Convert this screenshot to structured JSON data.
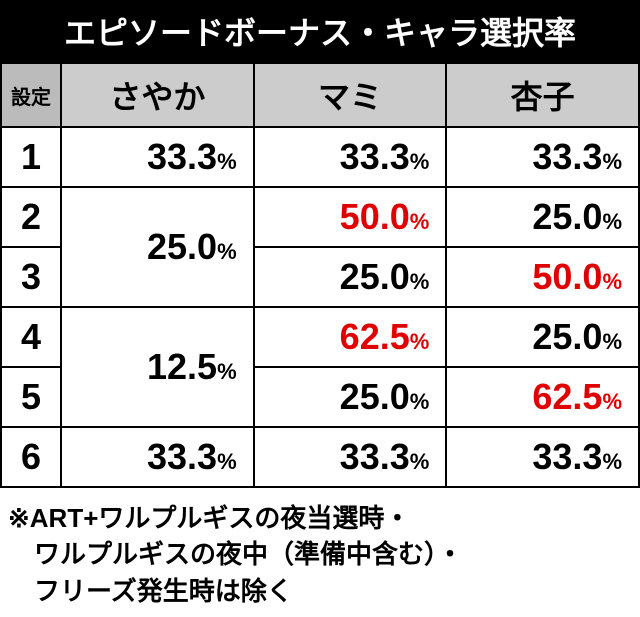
{
  "title": "エピソードボーナス・キャラ選択率",
  "setting_header": "設定",
  "columns": [
    "さやか",
    "マミ",
    "杏子"
  ],
  "table": {
    "header_bg": "#cccccc",
    "setting_header_bg": "#bbbbbb",
    "border_color": "#000000",
    "highlight_color": "#e00000",
    "title_bg": "#000000",
    "title_color": "#ffffff",
    "title_fontsize": 32,
    "header_fontsize": 32,
    "cell_fontsize_big": 36,
    "cell_fontsize_small": 22
  },
  "rows": [
    {
      "setting": "1",
      "sayaka": "33.3",
      "mami": "33.3",
      "kyoko": "33.3",
      "sayaka_span": 1,
      "mami_hl": false,
      "kyoko_hl": false
    },
    {
      "setting": "2",
      "sayaka": "25.0",
      "mami": "50.0",
      "kyoko": "25.0",
      "sayaka_span": 2,
      "mami_hl": true,
      "kyoko_hl": false
    },
    {
      "setting": "3",
      "sayaka": null,
      "mami": "25.0",
      "kyoko": "50.0",
      "sayaka_span": 0,
      "mami_hl": false,
      "kyoko_hl": true
    },
    {
      "setting": "4",
      "sayaka": "12.5",
      "mami": "62.5",
      "kyoko": "25.0",
      "sayaka_span": 2,
      "mami_hl": true,
      "kyoko_hl": false
    },
    {
      "setting": "5",
      "sayaka": null,
      "mami": "25.0",
      "kyoko": "62.5",
      "sayaka_span": 0,
      "mami_hl": false,
      "kyoko_hl": true
    },
    {
      "setting": "6",
      "sayaka": "33.3",
      "mami": "33.3",
      "kyoko": "33.3",
      "sayaka_span": 1,
      "mami_hl": false,
      "kyoko_hl": false
    }
  ],
  "footnote_lines": [
    "※ART+ワルプルギスの夜当選時・",
    "　ワルプルギスの夜中（準備中含む）・",
    "　フリーズ発生時は除く"
  ]
}
